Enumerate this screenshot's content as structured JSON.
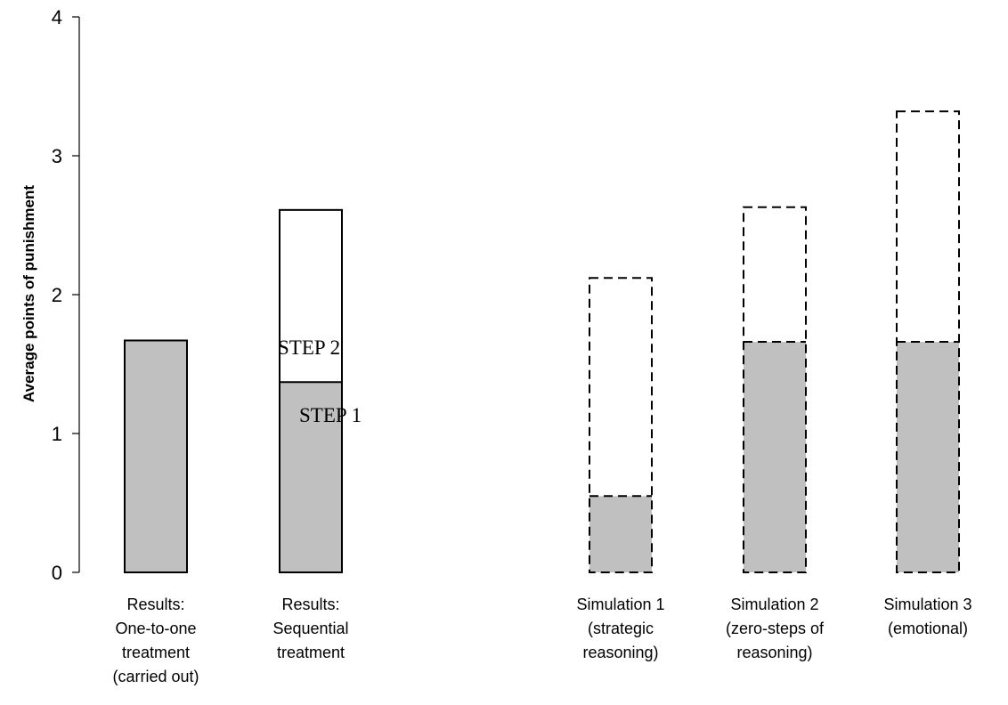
{
  "chart_data": {
    "type": "bar",
    "stacked": true,
    "ylabel": "Average points of punishment",
    "ylim": [
      0,
      4
    ],
    "yticks": [
      "0",
      "1",
      "2",
      "3",
      "4"
    ],
    "grid": false,
    "categories": [
      [
        "Results:",
        "One-to-one",
        "treatment",
        "(carried out)"
      ],
      [
        "Results:",
        "Sequential",
        "treatment"
      ],
      [
        "Simulation 1",
        "(strategic",
        "reasoning)"
      ],
      [
        "Simulation 2",
        "(zero-steps of",
        "reasoning)"
      ],
      [
        "Simulation 3",
        "(emotional)"
      ]
    ],
    "bars": [
      {
        "step1": 1.67,
        "total": 1.67,
        "outline": "solid"
      },
      {
        "step1": 1.37,
        "total": 2.61,
        "outline": "solid"
      },
      {
        "step1": 0.55,
        "total": 2.12,
        "outline": "dashed"
      },
      {
        "step1": 1.66,
        "total": 2.63,
        "outline": "dashed"
      },
      {
        "step1": 1.66,
        "total": 3.32,
        "outline": "dashed"
      }
    ],
    "annotations": [
      "STEP 2",
      "STEP 1"
    ],
    "colors": {
      "step1_fill": "#c0c0c0",
      "step2_fill": "#ffffff",
      "outline": "#000000"
    }
  }
}
